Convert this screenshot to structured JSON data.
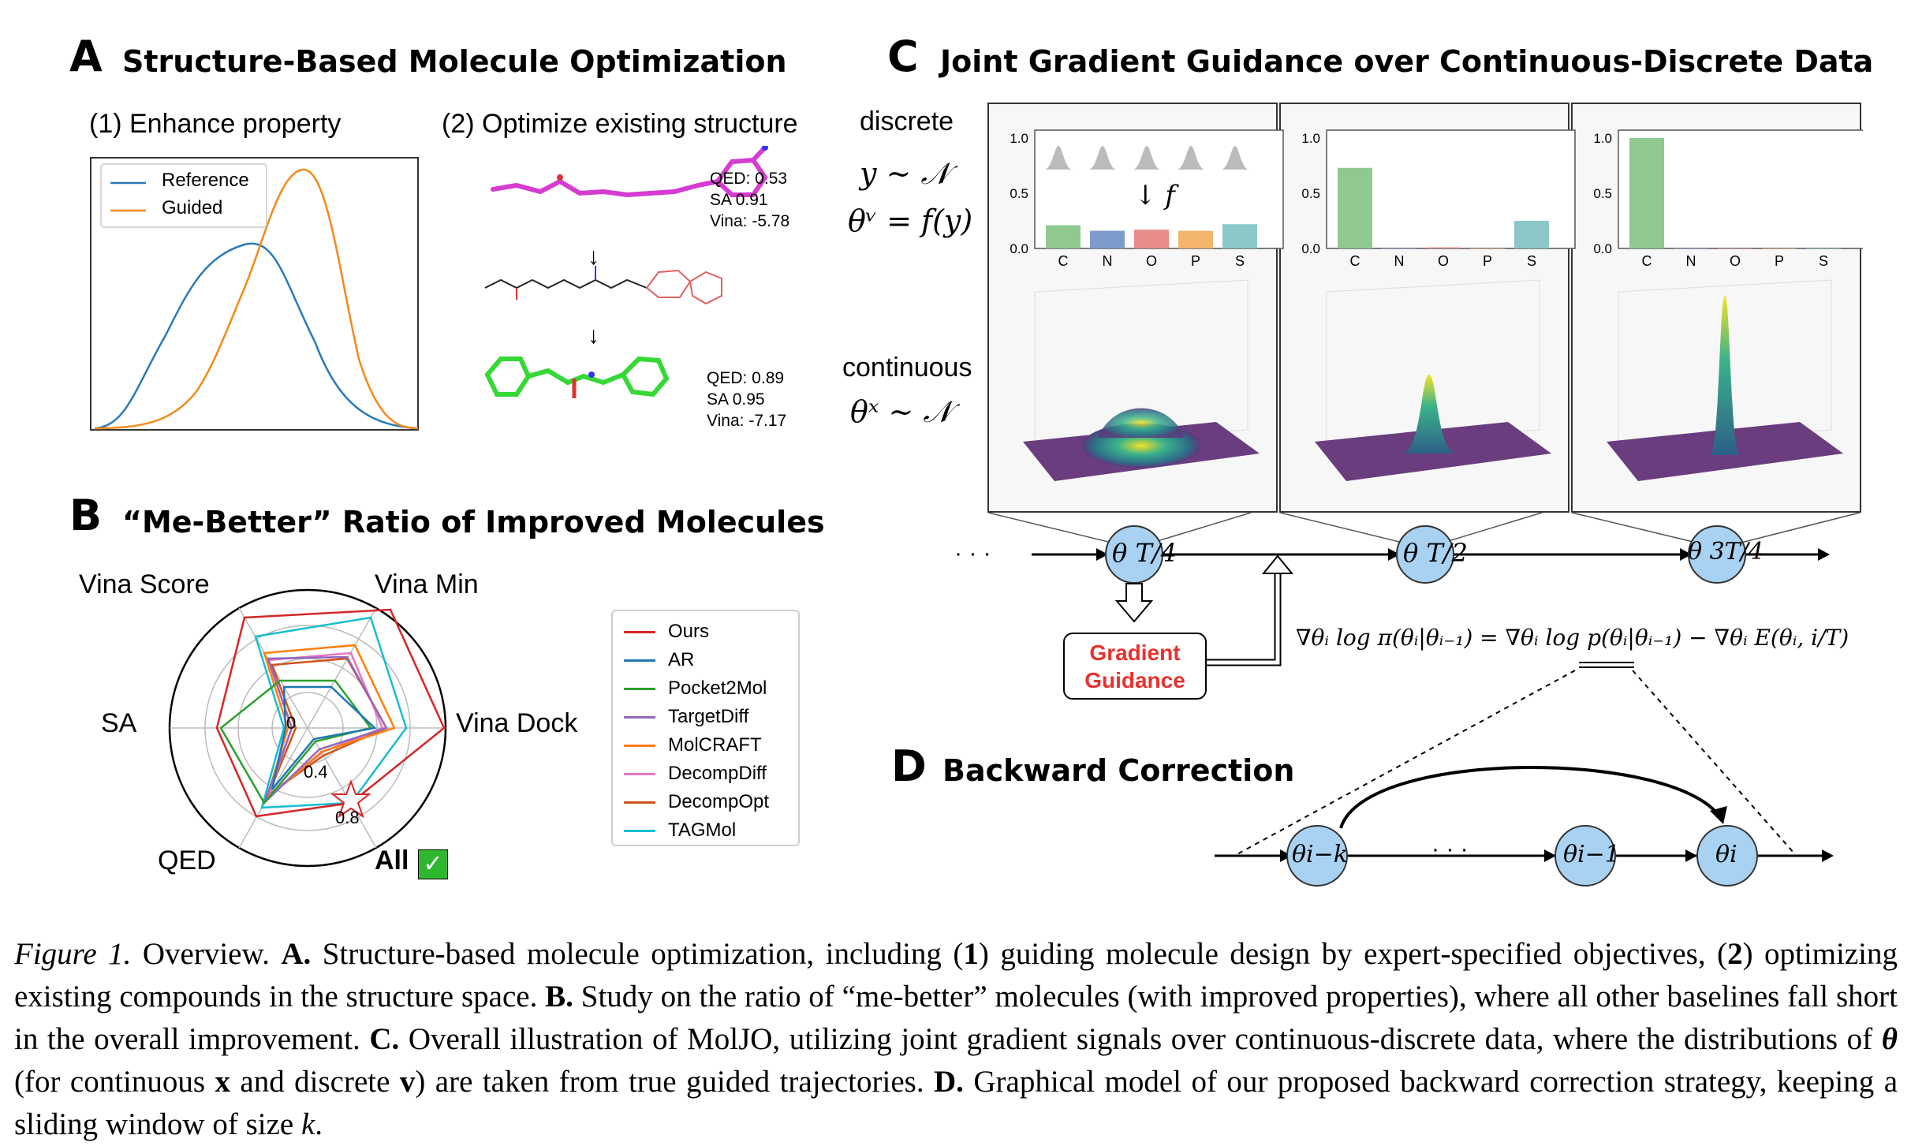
{
  "panel_a": {
    "letter": "A",
    "title": "Structure-Based Molecule Optimization",
    "sub1": "(1) Enhance property",
    "sub2": "(2) Optimize existing structure",
    "legend": [
      "Reference",
      "Guided"
    ],
    "colors": {
      "reference": "#2a7ab8",
      "guided": "#f28a1b"
    },
    "mol1": {
      "qed": "QED: 0.53",
      "sa": "SA 0.91",
      "vina": "Vina: -5.78"
    },
    "mol2": {
      "qed": "QED: 0.89",
      "sa": "SA 0.95",
      "vina": "Vina: -7.17"
    },
    "arrow": "↓"
  },
  "panel_b": {
    "letter": "B",
    "title": "“Me-Better” Ratio of Improved Molecules",
    "axes": [
      "Vina Score",
      "Vina Min",
      "Vina Dock",
      "All",
      "QED",
      "SA"
    ],
    "ticks": [
      "0",
      "0.4",
      "0.8"
    ],
    "methods": [
      {
        "name": "Ours",
        "color": "#d62728"
      },
      {
        "name": "AR",
        "color": "#1f77b4"
      },
      {
        "name": "Pocket2Mol",
        "color": "#2ca02c"
      },
      {
        "name": "TargetDiff",
        "color": "#9467bd"
      },
      {
        "name": "MolCRAFT",
        "color": "#ff7f0e"
      },
      {
        "name": "DecompDiff",
        "color": "#e377c2"
      },
      {
        "name": "DecompOpt",
        "color": "#d0531a"
      },
      {
        "name": "TAGMol",
        "color": "#17becf"
      }
    ],
    "check": "✓"
  },
  "panel_c": {
    "letter": "C",
    "title": "Joint Gradient Guidance over Continuous-Discrete Data",
    "discrete": "discrete",
    "continuous": "continuous",
    "eq1": "y ∼ 𝒩",
    "eq2": "θᵛ = f(y)",
    "eq3": "θˣ ∼ 𝒩",
    "f_label": "↓ f",
    "bar_categories": [
      "C",
      "N",
      "O",
      "P",
      "S"
    ],
    "bar_yticks": [
      "1.0",
      "0.5",
      "0.0"
    ],
    "bar_colors": [
      "#8fc98f",
      "#7d9ccc",
      "#e98b8b",
      "#f3b46c",
      "#8cc8c8"
    ],
    "bars": [
      [
        0.21,
        0.16,
        0.17,
        0.16,
        0.22
      ],
      [
        0.73,
        0.0,
        0.01,
        0.0,
        0.25
      ],
      [
        1.0,
        0.0,
        0.0,
        0.0,
        0.0
      ]
    ],
    "gradient_guidance": [
      "Gradient",
      "Guidance"
    ],
    "dots": "· · ·",
    "nodes": [
      "θ T/4",
      "θ T/2",
      "θ 3T/4"
    ],
    "equation": "∇θᵢ log π(θᵢ|θᵢ₋₁) = ∇θᵢ log p(θᵢ|θᵢ₋₁) − ∇θᵢ E(θᵢ, i/T)"
  },
  "panel_d": {
    "letter": "D",
    "title": "Backward Correction",
    "nodes": [
      "θi−k",
      "θi−1",
      "θi"
    ],
    "dots": "· · ·"
  },
  "caption": {
    "fig": "Figure 1.",
    "text1": " Overview. ",
    "A": "A.",
    "t_a": " Structure-based molecule optimization, including (",
    "one": "1",
    "t_a2": ") guiding molecule design by expert-specified objectives, (",
    "two": "2",
    "t_a3": ") optimizing existing compounds in the structure space. ",
    "B": "B.",
    "t_b": " Study on the ratio of “me-better” molecules (with improved properties), where all other baselines fall short in the overall improvement. ",
    "C": "C.",
    "t_c": " Overall illustration of MolJO, utilizing joint gradient signals over continuous-discrete data, where the distributions of ",
    "theta": "θ",
    "t_c2": " (for continuous ",
    "x": "x",
    "t_c3": " and discrete ",
    "v": "v",
    "t_c4": ") are taken from true guided trajectories. ",
    "D": "D.",
    "t_d": " Graphical model of our proposed backward correction strategy, keeping a sliding window of size ",
    "k": "k",
    "end": "."
  }
}
